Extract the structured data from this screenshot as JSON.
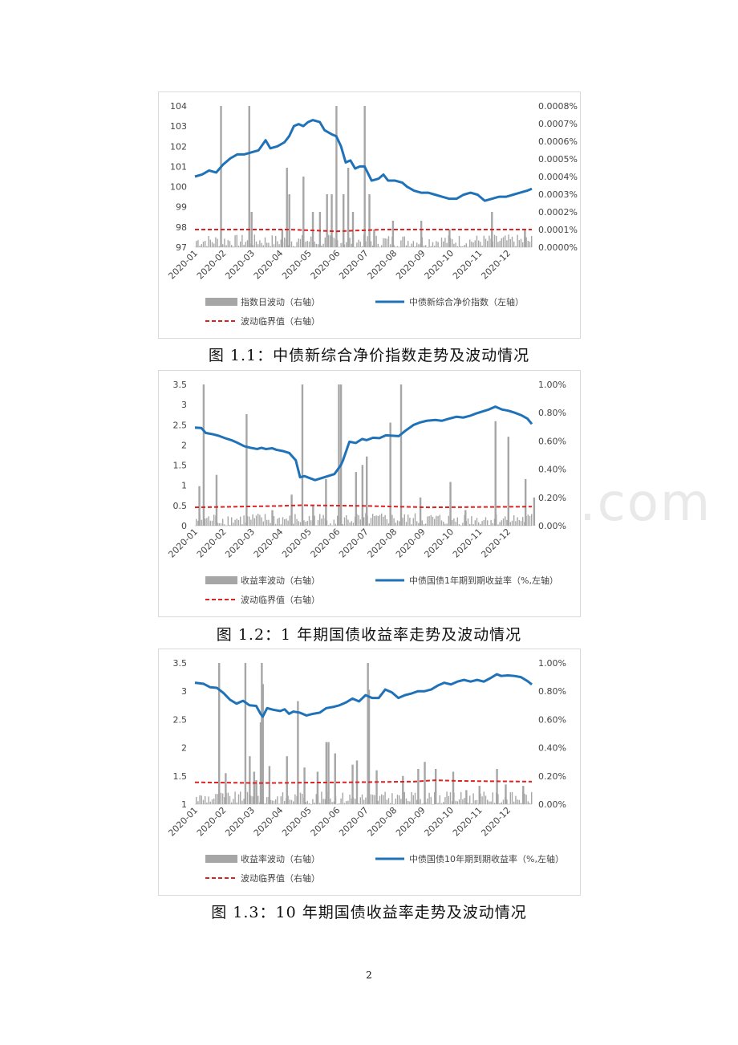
{
  "watermark": "www.baogao8.com",
  "page_number": "2",
  "figures": [
    {
      "caption": "图 1.1：中债新综合净价指数走势及波动情况",
      "legend": {
        "bar": "指数日波动（右轴）",
        "line": "中债新综合净价指数（左轴）",
        "dash": "波动临界值（右轴）"
      },
      "colors": {
        "line": "#1f72b8",
        "bar": "#a6a6a6",
        "dash": "#e02020"
      }
    },
    {
      "caption": "图 1.2：1 年期国债收益率走势及波动情况",
      "legend": {
        "bar": "收益率波动（右轴）",
        "line": "中债国债1年期到期收益率（%,左轴）",
        "dash": "波动临界值（右轴）"
      },
      "colors": {
        "line": "#1f72b8",
        "bar": "#a6a6a6",
        "dash": "#e02020"
      }
    },
    {
      "caption": "图 1.3：10 年期国债收益率走势及波动情况",
      "legend": {
        "bar": "收益率波动（右轴）",
        "line": "中债国债10年期到期收益率（%,左轴）",
        "dash": "波动临界值（右轴）"
      },
      "colors": {
        "line": "#1f72b8",
        "bar": "#a6a6a6",
        "dash": "#e02020"
      }
    }
  ],
  "chart_data": [
    {
      "type": "line",
      "x_categories": [
        "2020-01",
        "2020-02",
        "2020-03",
        "2020-04",
        "2020-05",
        "2020-06",
        "2020-07",
        "2020-08",
        "2020-09",
        "2020-10",
        "2020-11",
        "2020-12"
      ],
      "y_left": {
        "ticks": [
          "104",
          "103",
          "102",
          "101",
          "100",
          "99",
          "98",
          "97"
        ],
        "lim": [
          97,
          104
        ]
      },
      "y_right": {
        "ticks": [
          "0.0008%",
          "0.0007%",
          "0.0006%",
          "0.0005%",
          "0.0004%",
          "0.0003%",
          "0.0002%",
          "0.0001%",
          "0.0000%"
        ],
        "lim": [
          0,
          0.0008
        ]
      },
      "line_series": {
        "name": "中债新综合净价指数（左轴）",
        "points": [
          [
            0,
            100.5
          ],
          [
            0.3,
            100.6
          ],
          [
            0.6,
            100.8
          ],
          [
            0.9,
            100.7
          ],
          [
            1.2,
            101.1
          ],
          [
            1.5,
            101.4
          ],
          [
            1.8,
            101.6
          ],
          [
            2.1,
            101.6
          ],
          [
            2.4,
            101.7
          ],
          [
            2.7,
            101.8
          ],
          [
            3.0,
            102.3
          ],
          [
            3.2,
            101.9
          ],
          [
            3.5,
            102.0
          ],
          [
            3.8,
            102.2
          ],
          [
            4.0,
            102.5
          ],
          [
            4.2,
            103.0
          ],
          [
            4.4,
            103.1
          ],
          [
            4.6,
            103.0
          ],
          [
            4.8,
            103.2
          ],
          [
            5.0,
            103.3
          ],
          [
            5.3,
            103.2
          ],
          [
            5.5,
            102.8
          ],
          [
            5.8,
            102.6
          ],
          [
            6.0,
            102.5
          ],
          [
            6.2,
            102.0
          ],
          [
            6.4,
            101.2
          ],
          [
            6.6,
            101.3
          ],
          [
            6.8,
            100.9
          ],
          [
            7.0,
            101.0
          ],
          [
            7.2,
            101.0
          ],
          [
            7.5,
            100.3
          ],
          [
            7.8,
            100.4
          ],
          [
            8.0,
            100.6
          ],
          [
            8.2,
            100.3
          ],
          [
            8.5,
            100.3
          ],
          [
            8.8,
            100.2
          ],
          [
            9.0,
            100.0
          ],
          [
            9.3,
            99.8
          ],
          [
            9.6,
            99.7
          ],
          [
            9.9,
            99.7
          ],
          [
            10.2,
            99.6
          ],
          [
            10.5,
            99.5
          ],
          [
            10.8,
            99.4
          ],
          [
            11.1,
            99.4
          ],
          [
            11.4,
            99.6
          ],
          [
            11.7,
            99.7
          ],
          [
            12.0,
            99.6
          ],
          [
            12.3,
            99.3
          ],
          [
            12.6,
            99.4
          ],
          [
            12.9,
            99.5
          ],
          [
            13.2,
            99.5
          ],
          [
            13.5,
            99.6
          ],
          [
            13.8,
            99.7
          ],
          [
            14.1,
            99.8
          ],
          [
            14.3,
            99.9
          ]
        ]
      },
      "bar_series": {
        "name": "指数日波动（右轴）",
        "spikes": [
          [
            1.1,
            0.0008
          ],
          [
            2.3,
            0.0008
          ],
          [
            2.4,
            0.0002
          ],
          [
            3.9,
            0.00045
          ],
          [
            3.7,
            0.0001
          ],
          [
            4.0,
            0.0003
          ],
          [
            4.6,
            0.0004
          ],
          [
            5.0,
            0.0002
          ],
          [
            5.3,
            0.0002
          ],
          [
            5.6,
            0.0003
          ],
          [
            5.8,
            0.0003
          ],
          [
            6.0,
            0.0008
          ],
          [
            6.3,
            0.0003
          ],
          [
            6.5,
            0.00045
          ],
          [
            6.7,
            0.0002
          ],
          [
            7.2,
            0.0008
          ],
          [
            7.4,
            0.0003
          ],
          [
            7.6,
            0.0001
          ],
          [
            8.4,
            0.00015
          ],
          [
            9.6,
            0.00015
          ],
          [
            10.8,
            0.0001
          ],
          [
            12.6,
            0.0002
          ],
          [
            14.0,
            0.0001
          ]
        ]
      },
      "threshold_series": {
        "name": "波动临界值（右轴）",
        "points": [
          [
            0,
            0.0001
          ],
          [
            4,
            0.0001
          ],
          [
            6,
            9e-05
          ],
          [
            8,
            0.0001
          ],
          [
            14.3,
            0.0001
          ]
        ]
      }
    },
    {
      "type": "line",
      "x_categories": [
        "2020-01",
        "2020-02",
        "2020-03",
        "2020-04",
        "2020-05",
        "2020-06",
        "2020-07",
        "2020-08",
        "2020-09",
        "2020-10",
        "2020-11",
        "2020-12"
      ],
      "y_left": {
        "ticks": [
          "3.5",
          "3",
          "2.5",
          "2",
          "1.5",
          "1",
          "0.5",
          "0"
        ],
        "lim": [
          0,
          3.5
        ]
      },
      "y_right": {
        "ticks": [
          "1.00%",
          "0.80%",
          "0.60%",
          "0.40%",
          "0.20%",
          "0.00%"
        ],
        "lim": [
          0,
          1.0
        ]
      },
      "line_series": {
        "name": "中债国债1年期到期收益率（%,左轴）",
        "points": [
          [
            0,
            2.43
          ],
          [
            0.3,
            2.42
          ],
          [
            0.5,
            2.3
          ],
          [
            0.8,
            2.27
          ],
          [
            1.1,
            2.23
          ],
          [
            1.4,
            2.17
          ],
          [
            1.7,
            2.12
          ],
          [
            2.0,
            2.05
          ],
          [
            2.3,
            1.97
          ],
          [
            2.6,
            1.93
          ],
          [
            2.9,
            1.9
          ],
          [
            3.1,
            1.93
          ],
          [
            3.3,
            1.9
          ],
          [
            3.6,
            1.92
          ],
          [
            3.8,
            1.88
          ],
          [
            4.1,
            1.85
          ],
          [
            4.4,
            1.8
          ],
          [
            4.7,
            1.62
          ],
          [
            4.9,
            1.2
          ],
          [
            5.1,
            1.23
          ],
          [
            5.4,
            1.17
          ],
          [
            5.6,
            1.13
          ],
          [
            5.9,
            1.18
          ],
          [
            6.2,
            1.23
          ],
          [
            6.5,
            1.28
          ],
          [
            6.8,
            1.5
          ],
          [
            6.9,
            1.62
          ],
          [
            7.2,
            2.08
          ],
          [
            7.5,
            2.05
          ],
          [
            7.8,
            2.15
          ],
          [
            8.0,
            2.12
          ],
          [
            8.3,
            2.18
          ],
          [
            8.6,
            2.17
          ],
          [
            8.9,
            2.24
          ],
          [
            9.2,
            2.23
          ],
          [
            9.5,
            2.22
          ],
          [
            9.8,
            2.35
          ],
          [
            10.2,
            2.5
          ],
          [
            10.5,
            2.56
          ],
          [
            10.8,
            2.6
          ],
          [
            11.2,
            2.62
          ],
          [
            11.5,
            2.6
          ],
          [
            11.9,
            2.66
          ],
          [
            12.2,
            2.7
          ],
          [
            12.5,
            2.68
          ],
          [
            12.8,
            2.72
          ],
          [
            13.1,
            2.78
          ],
          [
            13.4,
            2.83
          ],
          [
            13.7,
            2.88
          ],
          [
            14.0,
            2.95
          ],
          [
            14.3,
            2.88
          ],
          [
            14.6,
            2.85
          ],
          [
            14.9,
            2.8
          ],
          [
            15.2,
            2.74
          ],
          [
            15.5,
            2.65
          ],
          [
            15.7,
            2.52
          ]
        ]
      },
      "bar_series": {
        "name": "收益率波动（右轴）",
        "spikes": [
          [
            0.2,
            0.28
          ],
          [
            0.4,
            1.0
          ],
          [
            1.0,
            0.36
          ],
          [
            2.4,
            0.79
          ],
          [
            3.6,
            0.11
          ],
          [
            4.5,
            0.22
          ],
          [
            5.0,
            1.0
          ],
          [
            5.5,
            0.14
          ],
          [
            6.1,
            0.33
          ],
          [
            6.7,
            1.0
          ],
          [
            6.8,
            1.0
          ],
          [
            7.5,
            0.38
          ],
          [
            7.8,
            0.43
          ],
          [
            8.0,
            0.49
          ],
          [
            9.1,
            0.73
          ],
          [
            9.6,
            1.0
          ],
          [
            10.5,
            0.2
          ],
          [
            11.9,
            0.31
          ],
          [
            12.6,
            0.11
          ],
          [
            14.0,
            0.74
          ],
          [
            14.6,
            0.63
          ],
          [
            15.4,
            0.33
          ],
          [
            15.8,
            0.2
          ]
        ]
      },
      "threshold_series": {
        "name": "波动临界值（右轴）",
        "points": [
          [
            0,
            0.13
          ],
          [
            4,
            0.14
          ],
          [
            5,
            0.145
          ],
          [
            8,
            0.14
          ],
          [
            11,
            0.13
          ],
          [
            15.8,
            0.135
          ]
        ]
      }
    },
    {
      "type": "line",
      "x_categories": [
        "2020-01",
        "2020-02",
        "2020-03",
        "2020-04",
        "2020-05",
        "2020-06",
        "2020-07",
        "2020-08",
        "2020-09",
        "2020-10",
        "2020-11",
        "2020-12"
      ],
      "y_left": {
        "ticks": [
          "3.5",
          "3",
          "2.5",
          "2",
          "1.5",
          "1"
        ],
        "lim": [
          1,
          3.5
        ]
      },
      "y_right": {
        "ticks": [
          "1.00%",
          "0.80%",
          "0.60%",
          "0.40%",
          "0.20%",
          "0.00%"
        ],
        "lim": [
          0,
          1.0
        ]
      },
      "line_series": {
        "name": "中债国债10年期到期收益率（%,左轴）",
        "points": [
          [
            0,
            3.15
          ],
          [
            0.4,
            3.13
          ],
          [
            0.7,
            3.07
          ],
          [
            1.0,
            3.06
          ],
          [
            1.3,
            2.97
          ],
          [
            1.6,
            2.85
          ],
          [
            1.9,
            2.78
          ],
          [
            2.2,
            2.83
          ],
          [
            2.5,
            2.75
          ],
          [
            2.8,
            2.74
          ],
          [
            3.0,
            2.6
          ],
          [
            3.1,
            2.55
          ],
          [
            3.3,
            2.7
          ],
          [
            3.6,
            2.67
          ],
          [
            3.9,
            2.65
          ],
          [
            4.1,
            2.68
          ],
          [
            4.3,
            2.6
          ],
          [
            4.5,
            2.64
          ],
          [
            4.8,
            2.62
          ],
          [
            5.1,
            2.57
          ],
          [
            5.4,
            2.6
          ],
          [
            5.7,
            2.62
          ],
          [
            6.0,
            2.7
          ],
          [
            6.3,
            2.72
          ],
          [
            6.6,
            2.75
          ],
          [
            6.9,
            2.8
          ],
          [
            7.2,
            2.87
          ],
          [
            7.5,
            2.82
          ],
          [
            7.8,
            2.93
          ],
          [
            8.1,
            2.88
          ],
          [
            8.4,
            2.88
          ],
          [
            8.7,
            3.03
          ],
          [
            9.0,
            2.98
          ],
          [
            9.3,
            2.88
          ],
          [
            9.6,
            2.93
          ],
          [
            9.9,
            2.96
          ],
          [
            10.2,
            3.0
          ],
          [
            10.5,
            3.0
          ],
          [
            10.8,
            3.03
          ],
          [
            11.1,
            3.1
          ],
          [
            11.4,
            3.15
          ],
          [
            11.7,
            3.12
          ],
          [
            12.0,
            3.17
          ],
          [
            12.3,
            3.2
          ],
          [
            12.6,
            3.17
          ],
          [
            12.9,
            3.2
          ],
          [
            13.2,
            3.17
          ],
          [
            13.5,
            3.23
          ],
          [
            13.8,
            3.3
          ],
          [
            14.0,
            3.27
          ],
          [
            14.3,
            3.28
          ],
          [
            14.6,
            3.27
          ],
          [
            14.9,
            3.25
          ],
          [
            15.2,
            3.18
          ],
          [
            15.4,
            3.12
          ]
        ]
      },
      "bar_series": {
        "name": "收益率波动（右轴）",
        "spikes": [
          [
            1.1,
            1.0
          ],
          [
            1.4,
            0.22
          ],
          [
            2.3,
            1.0
          ],
          [
            2.5,
            0.34
          ],
          [
            2.7,
            0.23
          ],
          [
            2.8,
            0.17
          ],
          [
            3.0,
            0.58
          ],
          [
            3.05,
            1.0
          ],
          [
            3.1,
            0.85
          ],
          [
            3.4,
            0.27
          ],
          [
            4.2,
            0.34
          ],
          [
            4.7,
            0.73
          ],
          [
            5.0,
            0.26
          ],
          [
            5.6,
            0.23
          ],
          [
            6.0,
            0.44
          ],
          [
            6.1,
            0.44
          ],
          [
            6.4,
            0.36
          ],
          [
            7.2,
            0.28
          ],
          [
            7.4,
            0.31
          ],
          [
            7.9,
            1.0
          ],
          [
            7.95,
            0.81
          ],
          [
            8.3,
            0.24
          ],
          [
            9.5,
            0.2
          ],
          [
            10.2,
            0.25
          ],
          [
            10.5,
            0.3
          ],
          [
            11.0,
            0.25
          ],
          [
            11.8,
            0.23
          ],
          [
            12.4,
            0.1
          ],
          [
            13.0,
            0.13
          ],
          [
            13.8,
            0.25
          ],
          [
            14.2,
            0.14
          ],
          [
            15.0,
            0.13
          ]
        ]
      },
      "threshold_series": {
        "name": "波动临界值（右轴）",
        "points": [
          [
            0,
            0.155
          ],
          [
            3,
            0.15
          ],
          [
            7,
            0.155
          ],
          [
            10,
            0.16
          ],
          [
            11,
            0.17
          ],
          [
            12,
            0.165
          ],
          [
            15.4,
            0.16
          ]
        ]
      }
    }
  ]
}
